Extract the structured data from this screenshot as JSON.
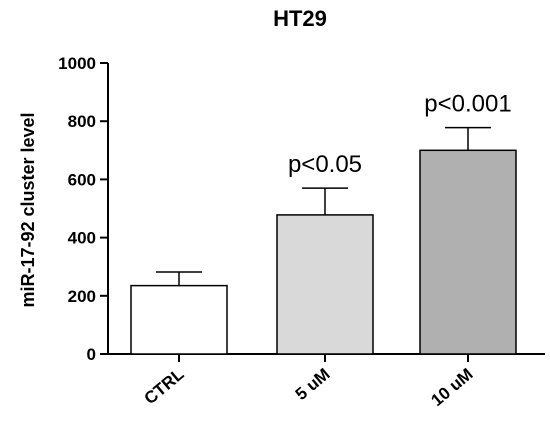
{
  "chart_data": {
    "type": "bar",
    "title": "HT29",
    "ylabel": "miR-17-92 cluster level",
    "xlabel": "",
    "ylim": [
      0,
      1000
    ],
    "yticks": [
      0,
      200,
      400,
      600,
      800,
      1000
    ],
    "categories": [
      "CTRL",
      "5 uM",
      "10 uM"
    ],
    "values": [
      235,
      478,
      700
    ],
    "errors": [
      47,
      92,
      78
    ],
    "annotations": [
      "",
      "p<0.05",
      "p<0.001"
    ],
    "bar_colors": [
      "#ffffff",
      "#d9d9d9",
      "#b0b0b0"
    ],
    "grid": false,
    "legend": "none"
  }
}
